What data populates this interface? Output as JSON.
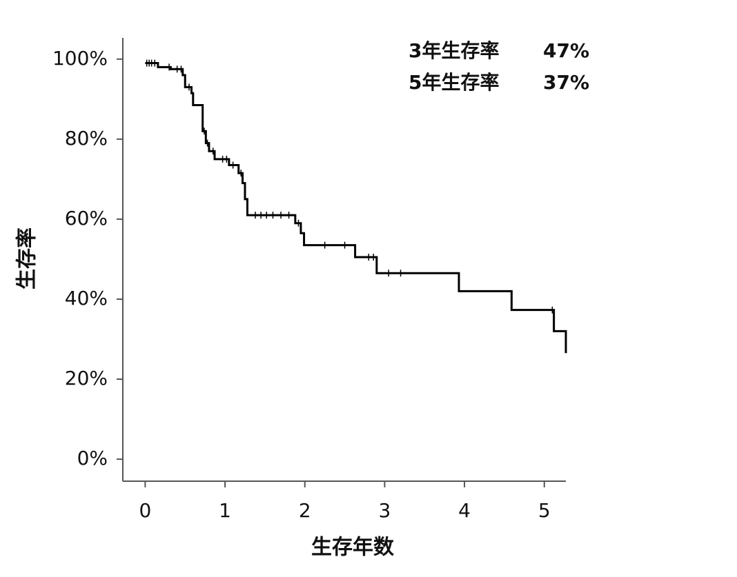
{
  "chart_data": {
    "type": "step",
    "x_label": "生存年数",
    "y_label": "生存率",
    "annotations": [
      {
        "label": "3年生存率",
        "value": "47%"
      },
      {
        "label": "5年生存率",
        "value": "37%"
      }
    ],
    "x": [
      0,
      0.16,
      0.32,
      0.47,
      0.5,
      0.58,
      0.6,
      0.72,
      0.76,
      0.8,
      0.87,
      1.05,
      1.17,
      1.22,
      1.25,
      1.28,
      1.88,
      1.95,
      1.99,
      2.63,
      2.9,
      3.93,
      4.59,
      5.12,
      5.27
    ],
    "values": [
      99,
      98,
      97.5,
      96,
      93,
      91.5,
      88.5,
      82,
      79,
      77,
      75,
      73.5,
      71.5,
      69,
      65,
      61,
      59,
      56.5,
      53.5,
      50.5,
      46.5,
      42,
      37.3,
      32,
      26.5
    ],
    "censor_x": [
      0.02,
      0.05,
      0.08,
      0.12,
      0.3,
      0.4,
      0.45,
      0.55,
      0.74,
      0.78,
      0.85,
      0.97,
      1.02,
      1.1,
      1.2,
      1.38,
      1.45,
      1.52,
      1.6,
      1.7,
      1.8,
      1.92,
      2.25,
      2.5,
      2.8,
      2.86,
      3.05,
      3.2,
      5.1
    ],
    "censor_values": [
      99,
      99,
      99,
      99,
      98,
      97.5,
      97.5,
      93,
      82,
      79,
      77,
      75,
      75,
      73.5,
      71.5,
      61,
      61,
      61,
      61,
      61,
      61,
      59,
      53.5,
      53.5,
      50.5,
      50.5,
      46.5,
      46.5,
      37.3
    ],
    "color": "#000000",
    "xlim": [
      -0.28,
      5.27
    ],
    "ylim": [
      -5.5,
      105.3
    ],
    "xticks": [
      0,
      1,
      2,
      3,
      4,
      5
    ],
    "yticks": [
      {
        "value": 0,
        "label": "0%"
      },
      {
        "value": 20,
        "label": "20%"
      },
      {
        "value": 40,
        "label": "40%"
      },
      {
        "value": 60,
        "label": "60%"
      },
      {
        "value": 80,
        "label": "80%"
      },
      {
        "value": 100,
        "label": "100%"
      }
    ]
  }
}
